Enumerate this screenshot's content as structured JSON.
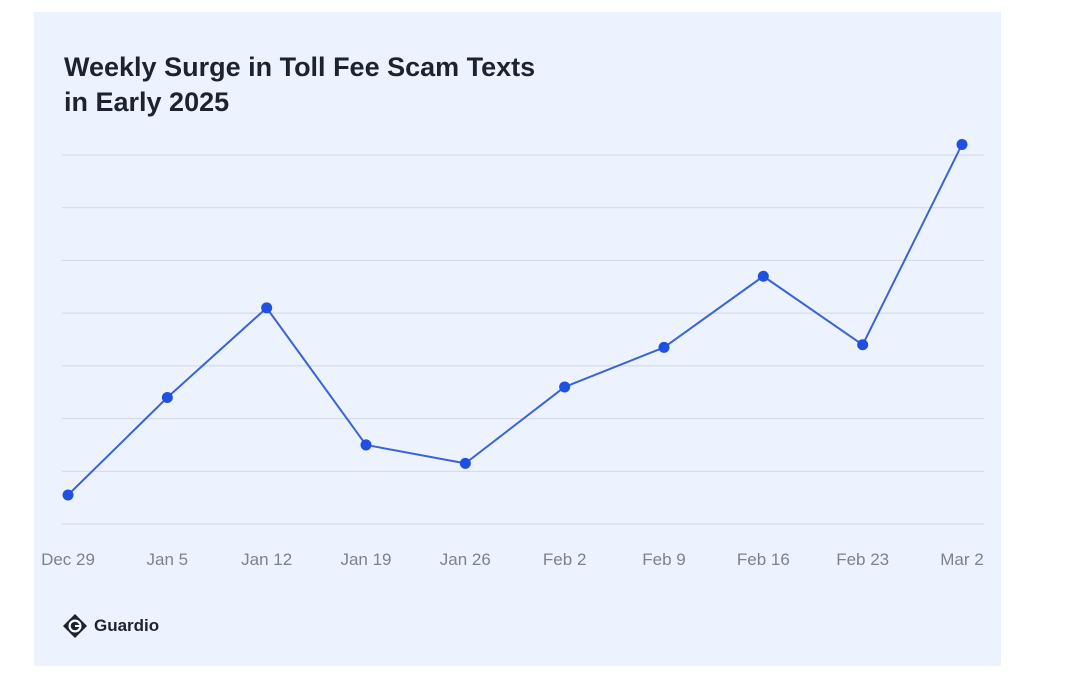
{
  "brand": {
    "name": "Guardio",
    "colors": {
      "background": "#edf3fe",
      "line": "#3b63d6",
      "marker": "#1f50e0",
      "grid": "#cfd6e4",
      "text": "#1d2230",
      "tick": "#7b8191"
    }
  },
  "chart_data": {
    "type": "line",
    "title": "Weekly Surge in Toll Fee Scam Texts in Early 2025",
    "xlabel": "",
    "ylabel": "",
    "categories": [
      "Dec 29",
      "Jan 5",
      "Jan 12",
      "Jan 19",
      "Jan 26",
      "Feb 2",
      "Feb 9",
      "Feb 16",
      "Feb 23",
      "Mar 2"
    ],
    "series": [
      {
        "values": [
          0.55,
          2.4,
          4.1,
          1.5,
          1.15,
          2.6,
          3.35,
          4.7,
          3.4,
          7.2
        ]
      }
    ],
    "ylim": [
      0,
      7
    ],
    "yticks_shown": false,
    "grid": true,
    "legend": "none"
  }
}
